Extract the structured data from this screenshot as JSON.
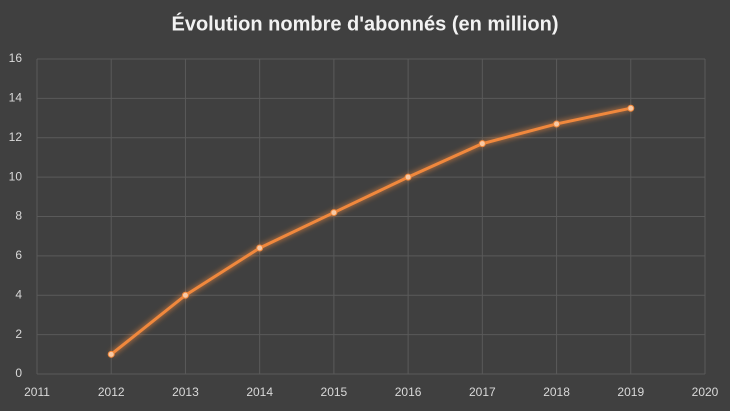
{
  "chart_data": {
    "type": "line",
    "title": "Évolution nombre d'abonnés (en million)",
    "x": [
      2012,
      2013,
      2014,
      2015,
      2016,
      2017,
      2018,
      2019
    ],
    "series": [
      {
        "color": "#f0883c",
        "values": [
          1,
          4,
          6.4,
          8.2,
          10,
          11.7,
          12.7,
          13.5
        ]
      }
    ],
    "xlim": [
      2011,
      2020
    ],
    "xticks": [
      2011,
      2012,
      2013,
      2014,
      2015,
      2016,
      2017,
      2018,
      2019,
      2020
    ],
    "ylim": [
      0,
      16
    ],
    "yticks": [
      0,
      2,
      4,
      6,
      8,
      10,
      12,
      14,
      16
    ],
    "grid": true
  }
}
